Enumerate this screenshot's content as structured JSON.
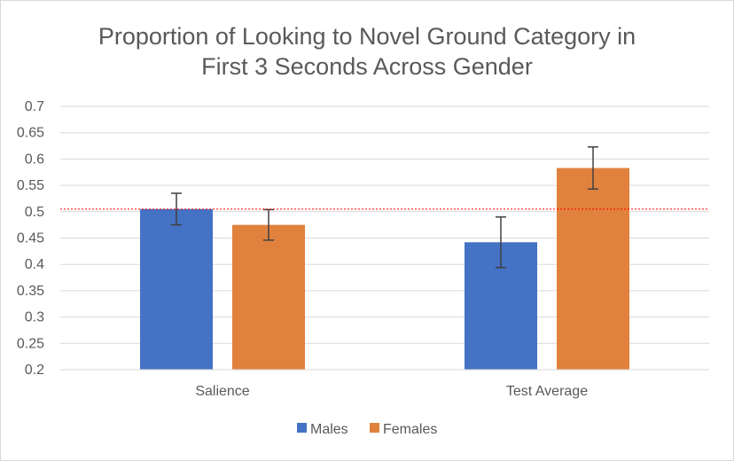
{
  "chart_data": {
    "type": "bar",
    "title_line1": "Proportion of Looking to Novel Ground Category in",
    "title_line2": "First 3 Seconds Across Gender",
    "categories": [
      "Salience",
      "Test Average"
    ],
    "series": [
      {
        "name": "Males",
        "color": "#4472c4",
        "values": [
          0.505,
          0.442
        ],
        "error": [
          0.03,
          0.048
        ]
      },
      {
        "name": "Females",
        "color": "#e0823d",
        "values": [
          0.475,
          0.583
        ],
        "error": [
          0.029,
          0.04
        ]
      }
    ],
    "ylim": [
      0.2,
      0.7
    ],
    "yticks": [
      "0.7",
      "0.65",
      "0.6",
      "0.55",
      "0.5",
      "0.45",
      "0.4",
      "0.35",
      "0.3",
      "0.25",
      "0.2"
    ],
    "reference_line": {
      "value": 0.505,
      "color": "#ff0000",
      "style": "dotted"
    },
    "grid": true,
    "legend_position": "bottom"
  }
}
